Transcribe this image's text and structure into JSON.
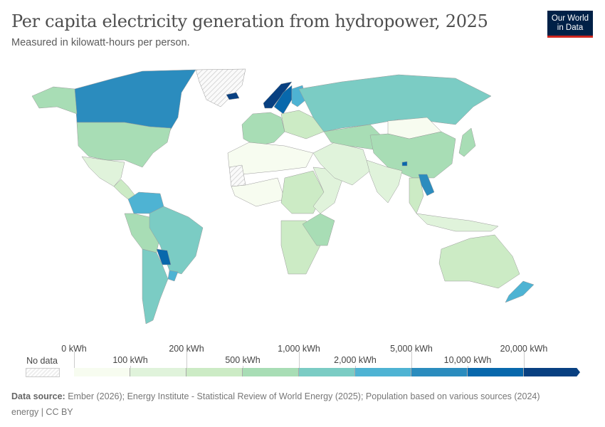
{
  "header": {
    "title": "Per capita electricity generation from hydropower, 2025",
    "subtitle": "Measured in kilowatt-hours per person.",
    "logo": "Our World in Data"
  },
  "legend": {
    "no_data_label": "No data",
    "breaks": [
      "0 kWh",
      "100 kWh",
      "200 kWh",
      "500 kWh",
      "1,000 kWh",
      "2,000 kWh",
      "5,000 kWh",
      "10,000 kWh",
      "20,000 kWh"
    ],
    "colors": [
      "#f7fcf0",
      "#e0f3db",
      "#ccebc5",
      "#a8ddb5",
      "#7bccc4",
      "#4eb3d3",
      "#2b8cbe",
      "#0868ac",
      "#084081"
    ],
    "no_data_color": "#eeeeee"
  },
  "map_regions": [
    {
      "id": "canada",
      "bin": 6
    },
    {
      "id": "usa",
      "bin": 3
    },
    {
      "id": "alaska",
      "bin": 3
    },
    {
      "id": "mexico",
      "bin": 1
    },
    {
      "id": "central-america",
      "bin": 2
    },
    {
      "id": "greenland",
      "bin": -1
    },
    {
      "id": "iceland",
      "bin": 8
    },
    {
      "id": "colombia-venezuela",
      "bin": 5
    },
    {
      "id": "peru-bolivia",
      "bin": 3
    },
    {
      "id": "brazil",
      "bin": 4
    },
    {
      "id": "paraguay",
      "bin": 7
    },
    {
      "id": "argentina-chile",
      "bin": 4
    },
    {
      "id": "uruguay",
      "bin": 5
    },
    {
      "id": "norway",
      "bin": 8
    },
    {
      "id": "sweden",
      "bin": 7
    },
    {
      "id": "finland",
      "bin": 5
    },
    {
      "id": "western-europe",
      "bin": 3
    },
    {
      "id": "eastern-europe",
      "bin": 2
    },
    {
      "id": "russia",
      "bin": 4
    },
    {
      "id": "north-africa",
      "bin": 0
    },
    {
      "id": "sahara-nodata",
      "bin": -1
    },
    {
      "id": "west-africa",
      "bin": 0
    },
    {
      "id": "central-africa",
      "bin": 2
    },
    {
      "id": "east-africa",
      "bin": 1
    },
    {
      "id": "southern-africa",
      "bin": 2
    },
    {
      "id": "mozambique-zambia",
      "bin": 3
    },
    {
      "id": "middle-east",
      "bin": 1
    },
    {
      "id": "central-asia",
      "bin": 3
    },
    {
      "id": "mongolia",
      "bin": 0
    },
    {
      "id": "china",
      "bin": 3
    },
    {
      "id": "india",
      "bin": 1
    },
    {
      "id": "southeast-asia",
      "bin": 2
    },
    {
      "id": "laos",
      "bin": 6
    },
    {
      "id": "bhutan",
      "bin": 7
    },
    {
      "id": "japan",
      "bin": 3
    },
    {
      "id": "indonesia",
      "bin": 1
    },
    {
      "id": "australia",
      "bin": 2
    },
    {
      "id": "new-zealand",
      "bin": 5
    }
  ],
  "footer": {
    "source_label": "Data source:",
    "source_text": "Ember (2026); Energy Institute - Statistical Review of World Energy (2025); Population based on various sources (2024)",
    "credit": "energy | CC BY"
  }
}
